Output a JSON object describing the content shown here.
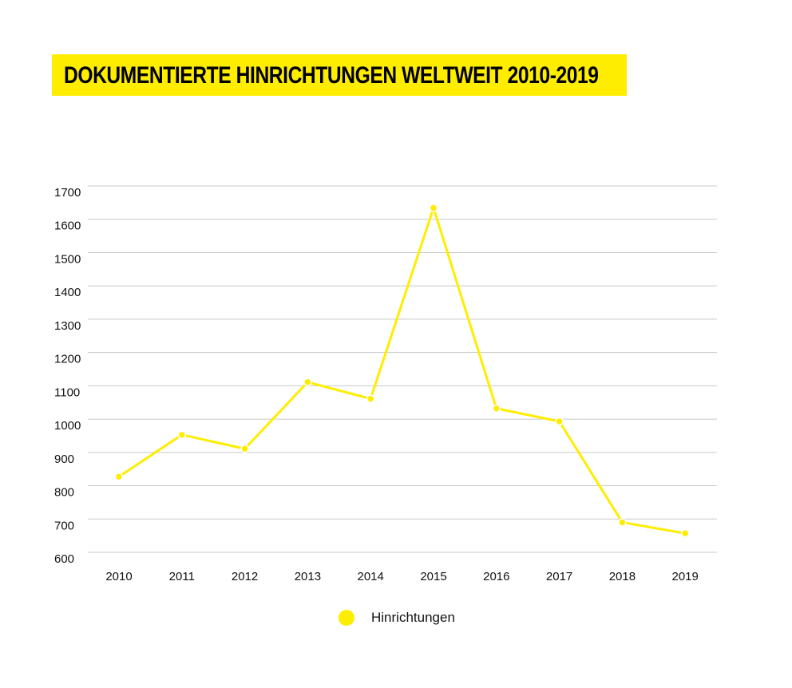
{
  "chart_data": {
    "type": "line",
    "title": "DOKUMENTIERTE HINRICHTUNGEN WELTWEIT 2010-2019",
    "xlabel": "",
    "ylabel": "",
    "categories": [
      "2010",
      "2011",
      "2012",
      "2013",
      "2014",
      "2015",
      "2016",
      "2017",
      "2018",
      "2019"
    ],
    "series": [
      {
        "name": "Hinrichtungen",
        "values": [
          827,
          953,
          911,
          1111,
          1061,
          1634,
          1032,
          993,
          690,
          657
        ],
        "color": "#ffed00"
      }
    ],
    "ylim": [
      600,
      1700
    ],
    "yticks": [
      "600",
      "700",
      "800",
      "900",
      "1000",
      "1100",
      "1200",
      "1300",
      "1400",
      "1500",
      "1600",
      "1700"
    ],
    "grid": true,
    "legend_position": "bottom"
  }
}
